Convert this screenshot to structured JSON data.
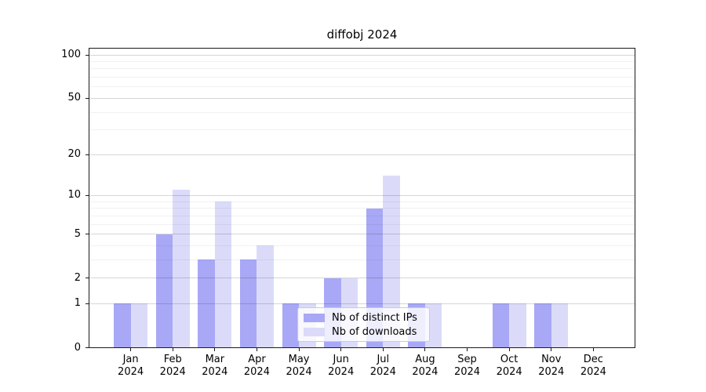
{
  "title": "diffobj 2024",
  "legend": {
    "items": [
      {
        "label": "Nb of distinct IPs",
        "color": "#a8a8f6"
      },
      {
        "label": "Nb of downloads",
        "color": "#dbdbf9"
      }
    ]
  },
  "chart_data": {
    "type": "bar",
    "title": "diffobj 2024",
    "categories": [
      "Jan 2024",
      "Feb 2024",
      "Mar 2024",
      "Apr 2024",
      "May 2024",
      "Jun 2024",
      "Jul 2024",
      "Aug 2024",
      "Sep 2024",
      "Oct 2024",
      "Nov 2024",
      "Dec 2024"
    ],
    "series": [
      {
        "name": "Nb of distinct IPs",
        "color": "#a8a8f6",
        "values": [
          1,
          5,
          3,
          3,
          1,
          2,
          8,
          1,
          0,
          1,
          1,
          0
        ]
      },
      {
        "name": "Nb of downloads",
        "color": "#dbdbf9",
        "values": [
          1,
          11,
          9,
          4,
          1,
          2,
          14,
          1,
          0,
          1,
          1,
          0
        ]
      }
    ],
    "xlabel": "",
    "ylabel": "",
    "y_scale": "log1p",
    "y_major_ticks": [
      0,
      1,
      2,
      5,
      10,
      20,
      50,
      100
    ],
    "y_minor_ticks": [
      3,
      4,
      6,
      7,
      8,
      9,
      30,
      40,
      60,
      70,
      80,
      90
    ],
    "ylim": [
      0,
      112
    ],
    "grid": true,
    "legend_position": "lower center inside",
    "colors": {
      "major_grid": "rgba(0,0,0,0.16)",
      "minor_grid": "rgba(0,0,0,0.055)",
      "axis": "#1a1a1a",
      "background": "#ffffff"
    }
  }
}
